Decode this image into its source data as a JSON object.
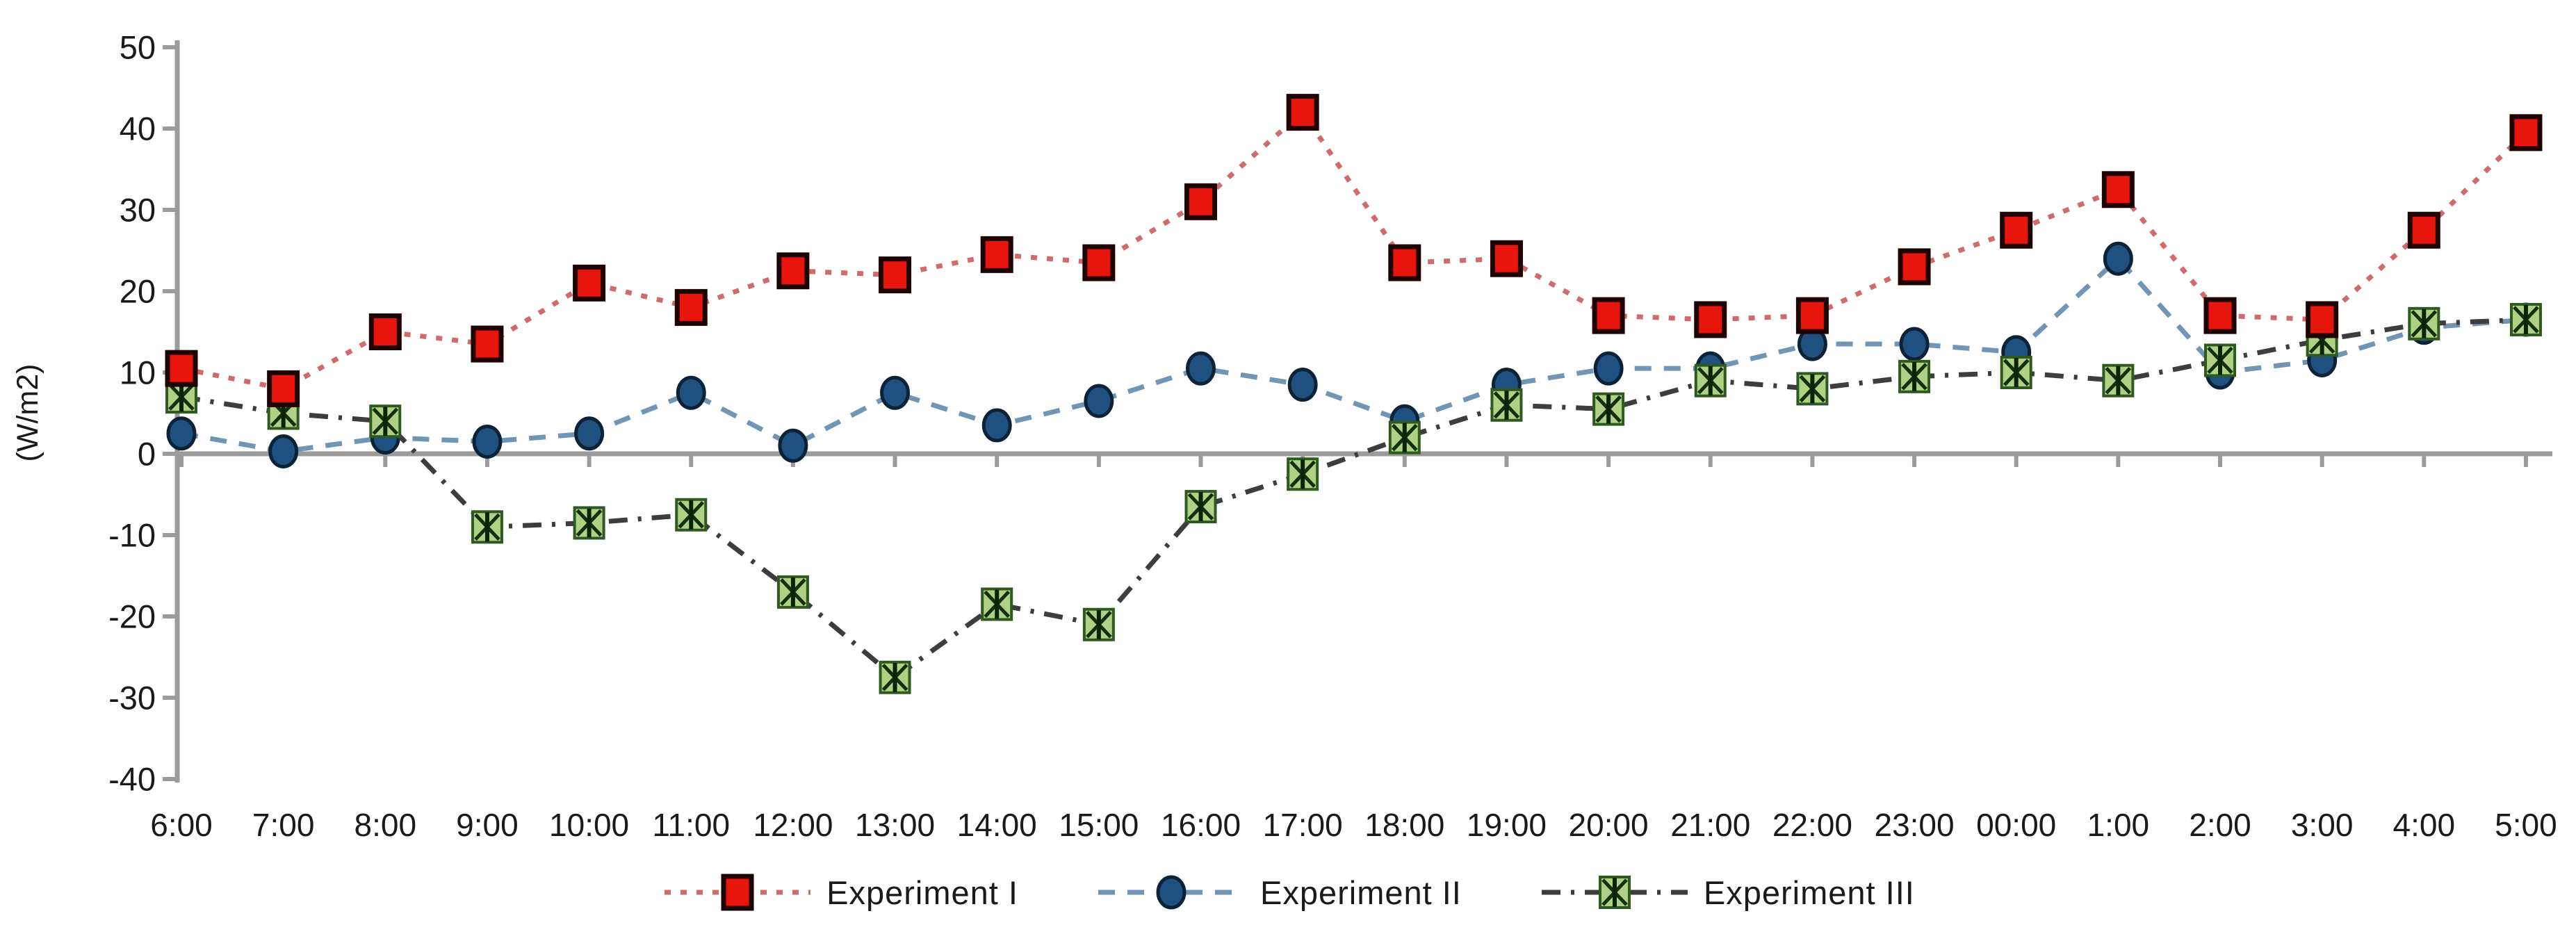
{
  "chart_data": {
    "type": "line",
    "title": "",
    "xlabel": "",
    "ylabel": "(W/m2)",
    "ylim": [
      -40,
      50
    ],
    "ytick_step": 10,
    "yticks": [
      50,
      40,
      30,
      20,
      10,
      0,
      -10,
      -20,
      -30,
      -40
    ],
    "grid": false,
    "legend_position": "bottom",
    "background_color": "#ffffff",
    "axis_color": "#9b9b9b",
    "text_color": "#1a1a1a",
    "categories": [
      "6:00",
      "7:00",
      "8:00",
      "9:00",
      "10:00",
      "11:00",
      "12:00",
      "13:00",
      "14:00",
      "15:00",
      "16:00",
      "17:00",
      "18:00",
      "19:00",
      "20:00",
      "21:00",
      "22:00",
      "23:00",
      "00:00",
      "1:00",
      "2:00",
      "3:00",
      "4:00",
      "5:00"
    ],
    "series": [
      {
        "name": "Experiment II",
        "marker": "circle",
        "marker_color": "#1e5180",
        "marker_border": "#0c2236",
        "line_color": "#7095b5",
        "line_style": "dashed",
        "values": [
          2.5,
          0.3,
          2,
          1.5,
          2.5,
          7.5,
          1,
          7.5,
          3.5,
          6.5,
          10.5,
          8.5,
          4,
          8.5,
          10.5,
          10.5,
          13.5,
          13.5,
          12.5,
          24,
          10,
          11.5,
          15.5,
          16.5
        ]
      },
      {
        "name": "Experiment III",
        "marker": "asterisk-square",
        "marker_color": "#aed184",
        "marker_border": "#2f5a1f",
        "line_color": "#3d3d3d",
        "line_style": "dash-dot",
        "values": [
          7,
          5,
          4,
          -9,
          -8.5,
          -7.5,
          -17,
          -27.5,
          -18.5,
          -21,
          -6.5,
          -2.5,
          2,
          6,
          5.5,
          9,
          8,
          9.5,
          10,
          9,
          11.5,
          14,
          16,
          16.5
        ]
      },
      {
        "name": "Experiment I",
        "marker": "square",
        "marker_color": "#e8150d",
        "marker_border": "#1f0202",
        "line_color": "#d16a6a",
        "line_style": "dotted",
        "values": [
          10.5,
          8,
          15,
          13.5,
          21,
          18,
          22.5,
          22,
          24.5,
          23.5,
          31,
          42,
          23.5,
          24,
          17,
          16.5,
          17,
          23,
          27.5,
          32.5,
          17,
          16.5,
          27.5,
          39.5
        ]
      }
    ],
    "legend_order": [
      "Experiment I",
      "Experiment II",
      "Experiment III"
    ]
  }
}
